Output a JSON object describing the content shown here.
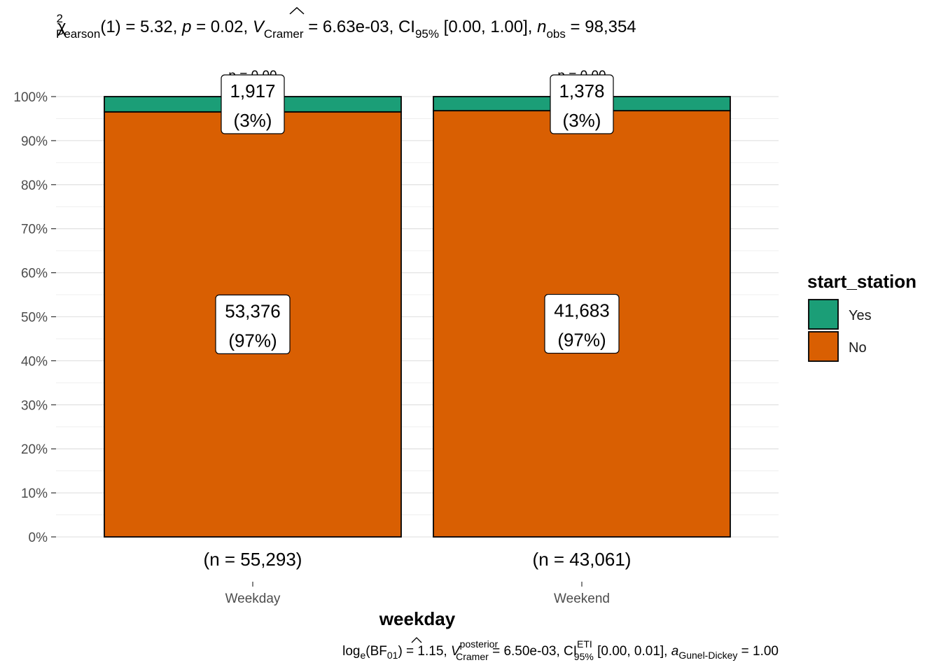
{
  "chart_data": {
    "type": "bar",
    "stacked": true,
    "percent": true,
    "xlabel": "weekday",
    "legend_title": "start_station",
    "legend_position": "right",
    "categories": [
      "Weekday",
      "Weekend"
    ],
    "category_n": [
      "(n = 55,293)",
      "(n = 43,061)"
    ],
    "series": [
      {
        "name": "Yes",
        "color": "#1B9E77",
        "percent": [
          3.467,
          3.2
        ],
        "counts": [
          "1,917",
          "1,378"
        ],
        "percent_labels": [
          "(3%)",
          "(3%)"
        ]
      },
      {
        "name": "No",
        "color": "#D95F02",
        "percent": [
          96.533,
          96.8
        ],
        "counts": [
          "53,376",
          "41,683"
        ],
        "percent_labels": [
          "(97%)",
          "(97%)"
        ]
      }
    ],
    "top_pvalues": [
      "p = 0.00",
      "p = 0.00"
    ],
    "ylim": [
      0,
      100
    ],
    "yticks": [
      "0%",
      "10%",
      "20%",
      "30%",
      "40%",
      "50%",
      "60%",
      "70%",
      "80%",
      "90%",
      "100%"
    ],
    "grid": true,
    "subtitle_parts": {
      "chi": "χ",
      "chi_sup": "2",
      "chi_sub": "Pearson",
      "df": "(1)",
      "eq1": " = 5.32, ",
      "p": "p",
      "eq2": " = 0.02, ",
      "v": "V",
      "v_sub": "Cramer",
      "eq3": " = 6.63e-03, CI",
      "ci_sub": "95%",
      "ci": " [0.00, 1.00], ",
      "n": "n",
      "n_sub": "obs",
      "eq4": " = 98,354"
    },
    "caption_parts": {
      "log": "log",
      "log_sub": "e",
      "bf": "(BF",
      "bf_sub": "01",
      "eq1": ") = 1.15, ",
      "v": "V",
      "v_sup": "posterior",
      "v_sub": "Cramer",
      "eq2": " = 6.50e-03, CI",
      "ci_sup": "ETI",
      "ci_sub": "95%",
      "ci": " [0.00, 0.01], ",
      "a": "a",
      "a_sub": "Gunel-Dickey",
      "eq3": " = 1.00"
    }
  }
}
